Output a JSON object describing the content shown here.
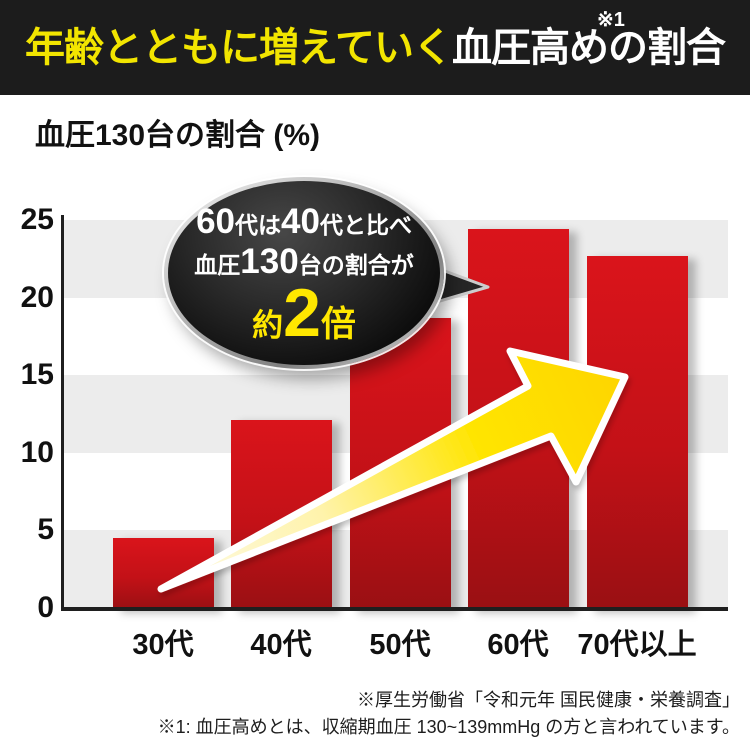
{
  "header": {
    "title_yellow": "年齢とともに増えていく",
    "title_white": "血圧高めの割合",
    "ref_mark": "※1"
  },
  "chart_title": "血圧130台の割合 (%)",
  "chart_data": {
    "type": "bar",
    "title": "血圧130台の割合 (%)",
    "categories": [
      "30代",
      "40代",
      "50代",
      "60代",
      "70代以上"
    ],
    "values": [
      4.5,
      12.1,
      18.7,
      24.4,
      22.7
    ],
    "xlabel": "",
    "ylabel": "",
    "ylim": [
      0,
      25
    ],
    "yticks": [
      0,
      5,
      10,
      15,
      20,
      25
    ],
    "grid": "alternating horizontal gray bands (gray: 0-5, 10-15, 20-25)",
    "legend": "none",
    "annotation": "60代は40代と比べ血圧130台の割合が約2倍"
  },
  "bubble": {
    "seg1": "60",
    "seg2": "代は",
    "seg3": "40",
    "seg4": "代と比べ",
    "seg5": "血圧",
    "seg6": "130",
    "seg7": "台の割合が",
    "seg8": "約",
    "seg9": "2",
    "seg10": "倍"
  },
  "footer": {
    "source": "※厚生労働省「令和元年 国民健康・栄養調査」",
    "note": "※1: 血圧高めとは、収縮期血圧 130~139mmHg の方と言われています。"
  },
  "colors": {
    "header_bg": "#1c1c1c",
    "header_yellow": "#f2e500",
    "header_white": "#ffffff",
    "bar_top": "#da141b",
    "bar_bottom": "#991013",
    "band_gray": "#ececec",
    "axis": "#1f1f1f",
    "arrow_yellow": "#ffe100",
    "arrow_tail_cream": "#fdfbe8",
    "arrow_outline": "#ffffff",
    "bubble_fill": "#141414",
    "bubble_rim_silver": "#c0c0c0",
    "bubble_accent_yellow": "#ffe700",
    "text": "#111111"
  }
}
